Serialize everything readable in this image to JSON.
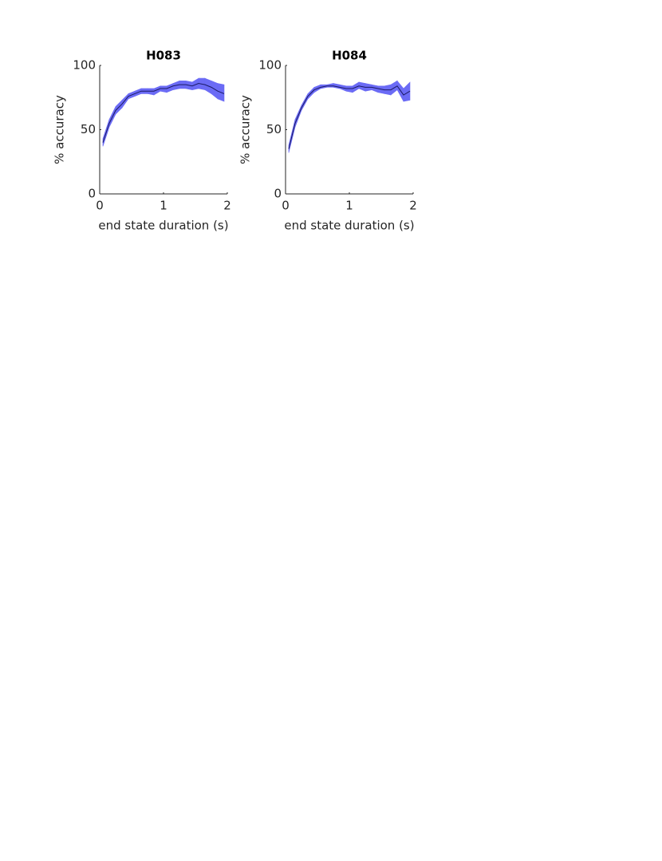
{
  "chart_data": [
    {
      "type": "line",
      "title": "H083",
      "xlabel": "end state duration (s)",
      "ylabel": "% accuracy",
      "x": [
        0.05,
        0.15,
        0.25,
        0.35,
        0.45,
        0.55,
        0.65,
        0.75,
        0.85,
        0.95,
        1.05,
        1.15,
        1.25,
        1.35,
        1.45,
        1.55,
        1.65,
        1.75,
        1.85,
        1.95
      ],
      "values": [
        40,
        55,
        65,
        70,
        76,
        78,
        80,
        80,
        80,
        82,
        82,
        84,
        85,
        85,
        84,
        86,
        85,
        83,
        80,
        78
      ],
      "lower": [
        37,
        52,
        62,
        67,
        74,
        76,
        78,
        78,
        77,
        80,
        79,
        81,
        82,
        82,
        81,
        82,
        81,
        78,
        74,
        72
      ],
      "upper": [
        43,
        58,
        68,
        73,
        78,
        80,
        82,
        82,
        82,
        84,
        84,
        86,
        88,
        88,
        87,
        90,
        90,
        88,
        86,
        85
      ],
      "color": "#6b6bf5",
      "line_color": "#1a1a66",
      "xlim": [
        0,
        2
      ],
      "xticks": [
        0,
        1,
        2
      ],
      "ylim": [
        0,
        100
      ],
      "yticks": [
        0,
        50,
        100
      ]
    },
    {
      "type": "line",
      "title": "H084",
      "xlabel": "end state duration (s)",
      "ylabel": "% accuracy",
      "x": [
        0.05,
        0.15,
        0.25,
        0.35,
        0.45,
        0.55,
        0.65,
        0.75,
        0.85,
        0.95,
        1.05,
        1.15,
        1.25,
        1.35,
        1.45,
        1.55,
        1.65,
        1.75,
        1.85,
        1.95
      ],
      "values": [
        35,
        55,
        67,
        76,
        81,
        83,
        84,
        84,
        83,
        82,
        82,
        84,
        83,
        83,
        82,
        81,
        81,
        84,
        77,
        80
      ],
      "lower": [
        32,
        52,
        65,
        74,
        79,
        82,
        83,
        83,
        82,
        80,
        79,
        82,
        80,
        81,
        79,
        78,
        77,
        81,
        72,
        73
      ],
      "upper": [
        38,
        58,
        69,
        78,
        83,
        85,
        85,
        86,
        85,
        84,
        84,
        87,
        86,
        85,
        84,
        84,
        85,
        88,
        82,
        87
      ],
      "color": "#6b6bf5",
      "line_color": "#1a1a66",
      "xlim": [
        0,
        2
      ],
      "xticks": [
        0,
        1,
        2
      ],
      "ylim": [
        0,
        100
      ],
      "yticks": [
        0,
        50,
        100
      ]
    }
  ]
}
